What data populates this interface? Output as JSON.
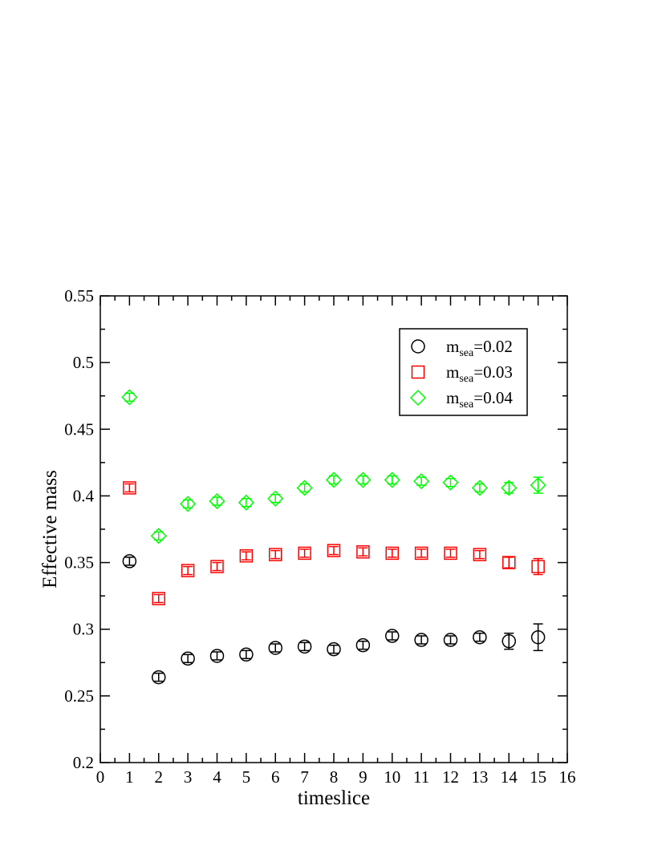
{
  "chart_data": {
    "type": "scatter",
    "title": "",
    "xlabel": "timeslice",
    "ylabel": "Effective mass",
    "xlim": [
      0,
      16
    ],
    "ylim": [
      0.2,
      0.55
    ],
    "xticks": [
      "0",
      "1",
      "2",
      "3",
      "4",
      "5",
      "6",
      "7",
      "8",
      "9",
      "10",
      "11",
      "12",
      "13",
      "14",
      "15",
      "16"
    ],
    "yticks": [
      "0.2",
      "0.25",
      "0.3",
      "0.35",
      "0.4",
      "0.45",
      "0.5",
      "0.55"
    ],
    "grid": false,
    "legend_position": "top-right",
    "series": [
      {
        "name": "m_sea=0.02",
        "label_main": "m",
        "label_sub": "sea",
        "label_value": "=0.02",
        "marker": "circle",
        "color": "#000000",
        "x": [
          1,
          2,
          3,
          4,
          5,
          6,
          7,
          8,
          9,
          10,
          11,
          12,
          13,
          14,
          15
        ],
        "y": [
          0.351,
          0.264,
          0.278,
          0.28,
          0.281,
          0.286,
          0.287,
          0.285,
          0.288,
          0.295,
          0.292,
          0.292,
          0.294,
          0.291,
          0.294
        ],
        "err": [
          0.003,
          0.003,
          0.003,
          0.003,
          0.003,
          0.003,
          0.003,
          0.003,
          0.003,
          0.003,
          0.003,
          0.003,
          0.003,
          0.006,
          0.01
        ]
      },
      {
        "name": "m_sea=0.03",
        "label_main": "m",
        "label_sub": "sea",
        "label_value": "=0.03",
        "marker": "square",
        "color": "#ff0000",
        "x": [
          1,
          2,
          3,
          4,
          5,
          6,
          7,
          8,
          9,
          10,
          11,
          12,
          13,
          14,
          15
        ],
        "y": [
          0.406,
          0.323,
          0.344,
          0.347,
          0.355,
          0.356,
          0.357,
          0.359,
          0.358,
          0.357,
          0.357,
          0.357,
          0.356,
          0.35,
          0.347
        ],
        "err": [
          0.003,
          0.003,
          0.003,
          0.003,
          0.003,
          0.003,
          0.003,
          0.003,
          0.003,
          0.003,
          0.003,
          0.003,
          0.003,
          0.004,
          0.006
        ]
      },
      {
        "name": "m_sea=0.04",
        "label_main": "m",
        "label_sub": "sea",
        "label_value": "=0.04",
        "marker": "diamond",
        "color": "#00ff00",
        "x": [
          1,
          2,
          3,
          4,
          5,
          6,
          7,
          8,
          9,
          10,
          11,
          12,
          13,
          14,
          15
        ],
        "y": [
          0.474,
          0.37,
          0.394,
          0.396,
          0.395,
          0.398,
          0.406,
          0.412,
          0.412,
          0.412,
          0.411,
          0.41,
          0.406,
          0.406,
          0.408
        ],
        "err": [
          0.003,
          0.003,
          0.003,
          0.003,
          0.003,
          0.003,
          0.003,
          0.003,
          0.003,
          0.003,
          0.003,
          0.003,
          0.003,
          0.004,
          0.006
        ]
      }
    ]
  }
}
